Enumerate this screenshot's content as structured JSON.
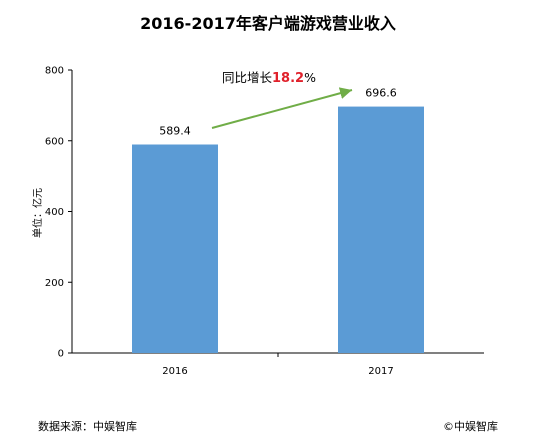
{
  "chart_data": {
    "type": "bar",
    "title": "2016-2017年客户端游戏营业收入",
    "ylabel": "单位：亿元",
    "xlabel": "",
    "categories": [
      "2016",
      "2017"
    ],
    "values": [
      589.4,
      696.6
    ],
    "value_labels": [
      "589.4",
      "696.6"
    ],
    "ylim": [
      0,
      800
    ],
    "yticks": [
      0,
      200,
      400,
      600,
      800
    ],
    "grid": false,
    "bar_color": "#5b9bd5",
    "annotation": {
      "prefix": "同比增长",
      "value": "18.2",
      "suffix": "%",
      "arrow_color": "#70ad47",
      "value_color": "#e0212b"
    }
  },
  "footer": {
    "source": "数据来源：中娱智库",
    "copyright": "©中娱智库"
  }
}
